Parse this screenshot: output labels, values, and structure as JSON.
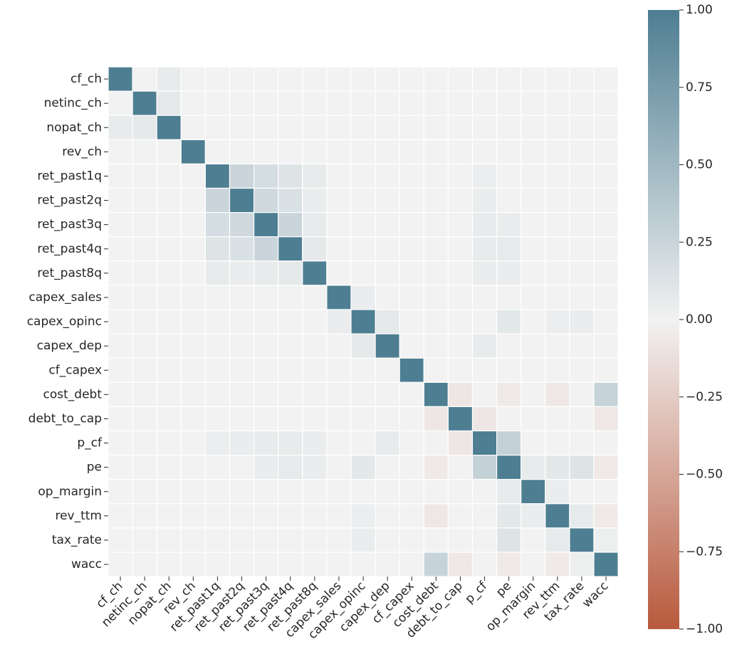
{
  "chart_data": {
    "type": "heatmap",
    "labels": [
      "cf_ch",
      "netinc_ch",
      "nopat_ch",
      "rev_ch",
      "ret_past1q",
      "ret_past2q",
      "ret_past3q",
      "ret_past4q",
      "ret_past8q",
      "capex_sales",
      "capex_opinc",
      "capex_dep",
      "cf_capex",
      "cost_debt",
      "debt_to_cap",
      "p_cf",
      "pe",
      "op_margin",
      "rev_ttm",
      "tax_rate",
      "wacc"
    ],
    "vmin": -1.0,
    "vmax": 1.0,
    "cmap": {
      "low": "#b85a3d",
      "mid": "#f2f2f2",
      "high": "#4e7e92"
    },
    "colorbar_ticks": [
      "1.00",
      "0.75",
      "0.50",
      "0.25",
      "0.00",
      "−0.25",
      "−0.50",
      "−0.75",
      "−1.00"
    ],
    "colorbar_values": [
      1.0,
      0.75,
      0.5,
      0.25,
      0.0,
      -0.25,
      -0.5,
      -0.75,
      -1.0
    ],
    "grid": true,
    "nonzero_correlations": [
      [
        "cf_ch",
        "nopat_ch",
        0.06
      ],
      [
        "netinc_ch",
        "nopat_ch",
        0.08
      ],
      [
        "ret_past1q",
        "ret_past2q",
        0.25
      ],
      [
        "ret_past1q",
        "ret_past3q",
        0.18
      ],
      [
        "ret_past1q",
        "ret_past4q",
        0.12
      ],
      [
        "ret_past1q",
        "ret_past8q",
        0.06
      ],
      [
        "ret_past2q",
        "ret_past3q",
        0.22
      ],
      [
        "ret_past2q",
        "ret_past4q",
        0.15
      ],
      [
        "ret_past2q",
        "ret_past8q",
        0.05
      ],
      [
        "ret_past3q",
        "ret_past4q",
        0.25
      ],
      [
        "ret_past3q",
        "ret_past8q",
        0.06
      ],
      [
        "ret_past4q",
        "ret_past8q",
        0.08
      ],
      [
        "ret_past1q",
        "p_cf",
        0.04
      ],
      [
        "ret_past2q",
        "p_cf",
        0.05
      ],
      [
        "ret_past3q",
        "p_cf",
        0.06
      ],
      [
        "ret_past4q",
        "p_cf",
        0.06
      ],
      [
        "ret_past8q",
        "p_cf",
        0.05
      ],
      [
        "ret_past3q",
        "pe",
        0.05
      ],
      [
        "ret_past4q",
        "pe",
        0.07
      ],
      [
        "ret_past8q",
        "pe",
        0.05
      ],
      [
        "capex_sales",
        "capex_opinc",
        0.05
      ],
      [
        "capex_opinc",
        "capex_dep",
        0.08
      ],
      [
        "capex_opinc",
        "pe",
        0.09
      ],
      [
        "capex_opinc",
        "tax_rate",
        0.05
      ],
      [
        "capex_opinc",
        "rev_ttm",
        0.04
      ],
      [
        "capex_dep",
        "p_cf",
        0.06
      ],
      [
        "cost_debt",
        "debt_to_cap",
        -0.08
      ],
      [
        "cost_debt",
        "pe",
        -0.06
      ],
      [
        "cost_debt",
        "rev_ttm",
        -0.07
      ],
      [
        "cost_debt",
        "wacc",
        0.27
      ],
      [
        "debt_to_cap",
        "p_cf",
        -0.08
      ],
      [
        "debt_to_cap",
        "wacc",
        -0.07
      ],
      [
        "p_cf",
        "pe",
        0.28
      ],
      [
        "pe",
        "op_margin",
        0.06
      ],
      [
        "pe",
        "rev_ttm",
        0.09
      ],
      [
        "pe",
        "tax_rate",
        0.12
      ],
      [
        "pe",
        "wacc",
        -0.06
      ],
      [
        "op_margin",
        "rev_ttm",
        0.05
      ],
      [
        "rev_ttm",
        "tax_rate",
        0.07
      ],
      [
        "rev_ttm",
        "wacc",
        -0.06
      ],
      [
        "tax_rate",
        "wacc",
        0.03
      ]
    ]
  }
}
